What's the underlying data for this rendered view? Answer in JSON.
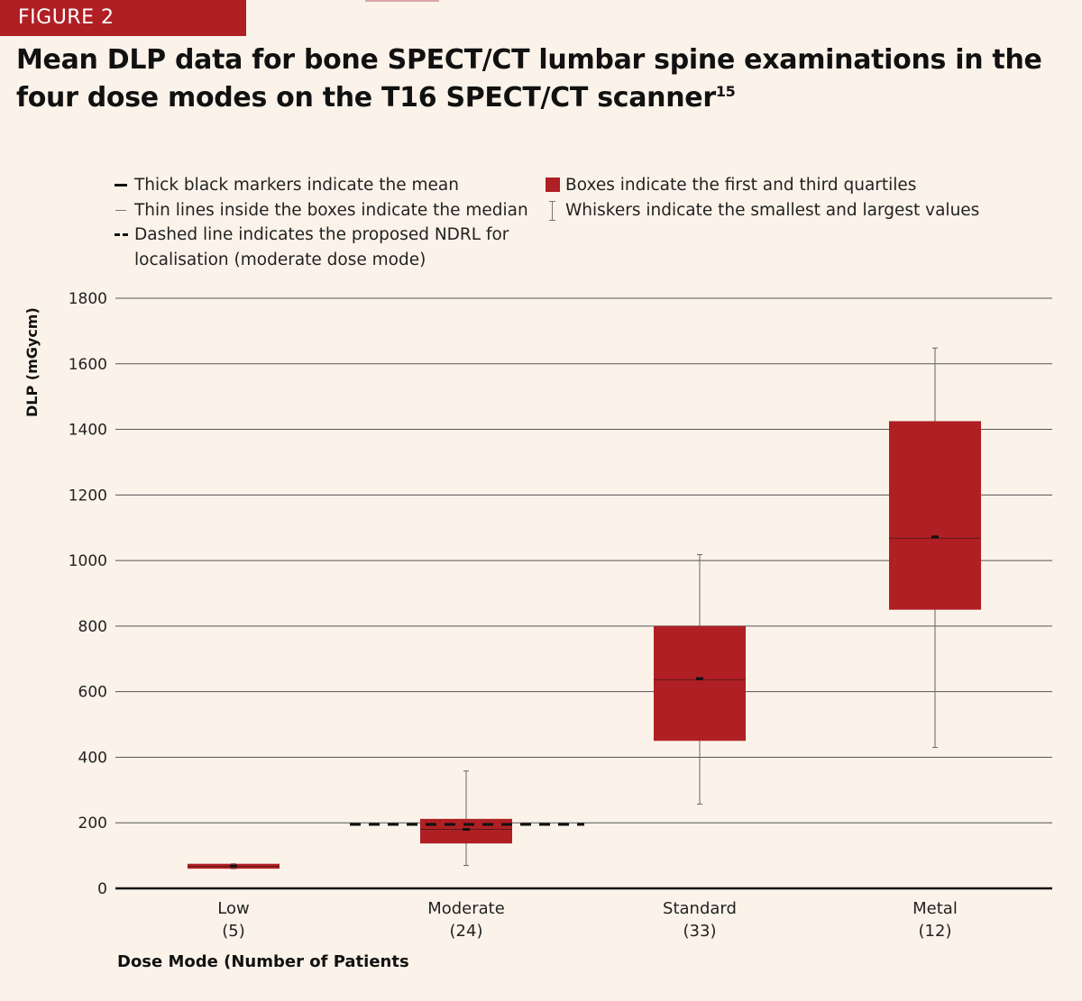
{
  "figure_label": "FIGURE 2",
  "title_main": "Mean DLP data for bone SPECT/CT lumbar spine examinations in the four dose modes on the T16 SPECT/CT scanner",
  "title_superscript": "15",
  "legend": {
    "mean": "Thick black markers indicate the mean",
    "median": "Thin lines inside the boxes indicate the median",
    "ndrl_line1": "Dashed line indicates the proposed NDRL for",
    "ndrl_line2": "localisation (moderate dose mode)",
    "quartiles": "Boxes indicate the first and third quartiles",
    "whiskers": "Whiskers indicate the smallest and largest values"
  },
  "colors": {
    "box": "#b01f24",
    "background": "#fbf3e9",
    "grid": "#555555",
    "whisker": "#666666"
  },
  "chart_data": {
    "type": "box",
    "title": "Mean DLP data for bone SPECT/CT lumbar spine examinations in the four dose modes on the T16 SPECT/CT scanner",
    "xlabel": "Dose Mode (Number of Patients",
    "ylabel": "DLP (mGycm)",
    "ylim": [
      0,
      1800
    ],
    "yticks": [
      0,
      200,
      400,
      600,
      800,
      1000,
      1200,
      1400,
      1600,
      1800
    ],
    "grid": true,
    "categories": [
      {
        "name": "Low",
        "n": "(5)",
        "min": 60,
        "q1": 60,
        "median": 67,
        "q3": 75,
        "max": 75,
        "mean": 68
      },
      {
        "name": "Moderate",
        "n": "(24)",
        "min": 70,
        "q1": 137,
        "median": 180,
        "q3": 212,
        "max": 358,
        "mean": 180
      },
      {
        "name": "Standard",
        "n": "(33)",
        "min": 257,
        "q1": 450,
        "median": 636,
        "q3": 800,
        "max": 1018,
        "mean": 640
      },
      {
        "name": "Metal",
        "n": "(12)",
        "min": 430,
        "q1": 850,
        "median": 1068,
        "q3": 1425,
        "max": 1648,
        "mean": 1072
      }
    ],
    "ndrl": {
      "value": 195,
      "category": "Moderate"
    }
  }
}
